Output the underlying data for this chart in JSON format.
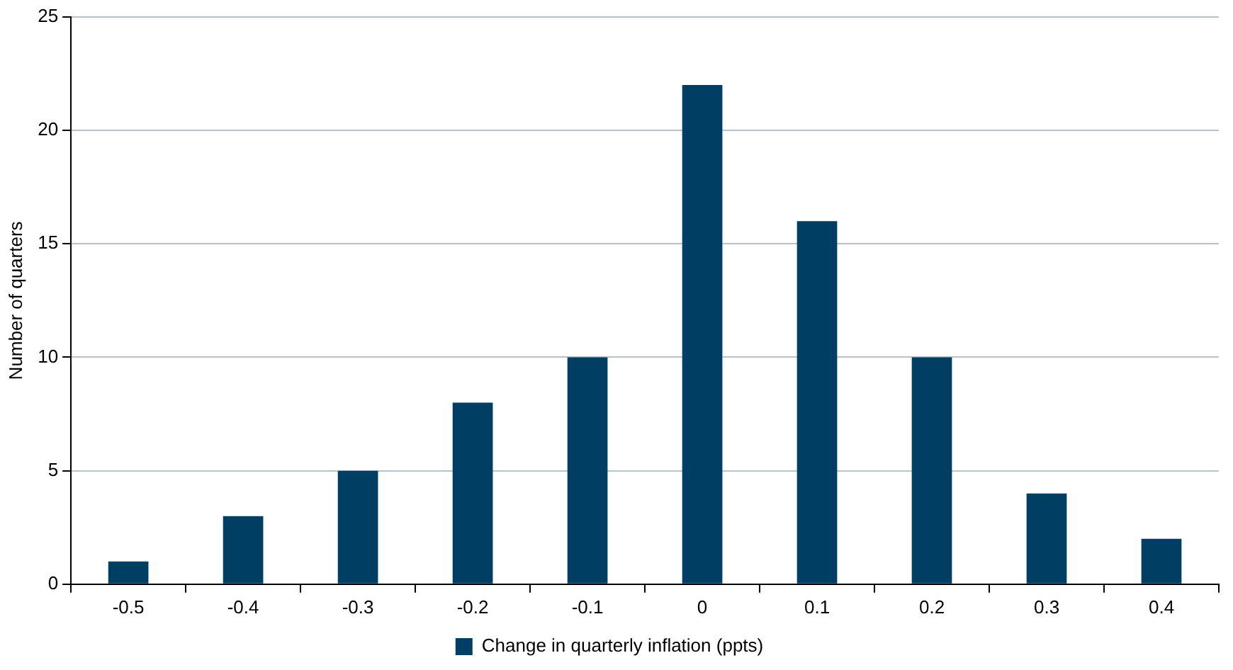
{
  "chart_data": {
    "type": "bar",
    "ylabel": "Number of quarters",
    "categories": [
      "-0.5",
      "-0.4",
      "-0.3",
      "-0.2",
      "-0.1",
      "0",
      "0.1",
      "0.2",
      "0.3",
      "0.4"
    ],
    "series": [
      {
        "name": "Change in quarterly inflation (ppts)",
        "color": "#003f63",
        "values": [
          1,
          3,
          5,
          8,
          10,
          22,
          16,
          10,
          4,
          2
        ]
      }
    ],
    "ylim": [
      0,
      25
    ],
    "yticks": [
      0,
      5,
      10,
      15,
      20,
      25
    ],
    "grid": "y",
    "legend": "bottom"
  }
}
